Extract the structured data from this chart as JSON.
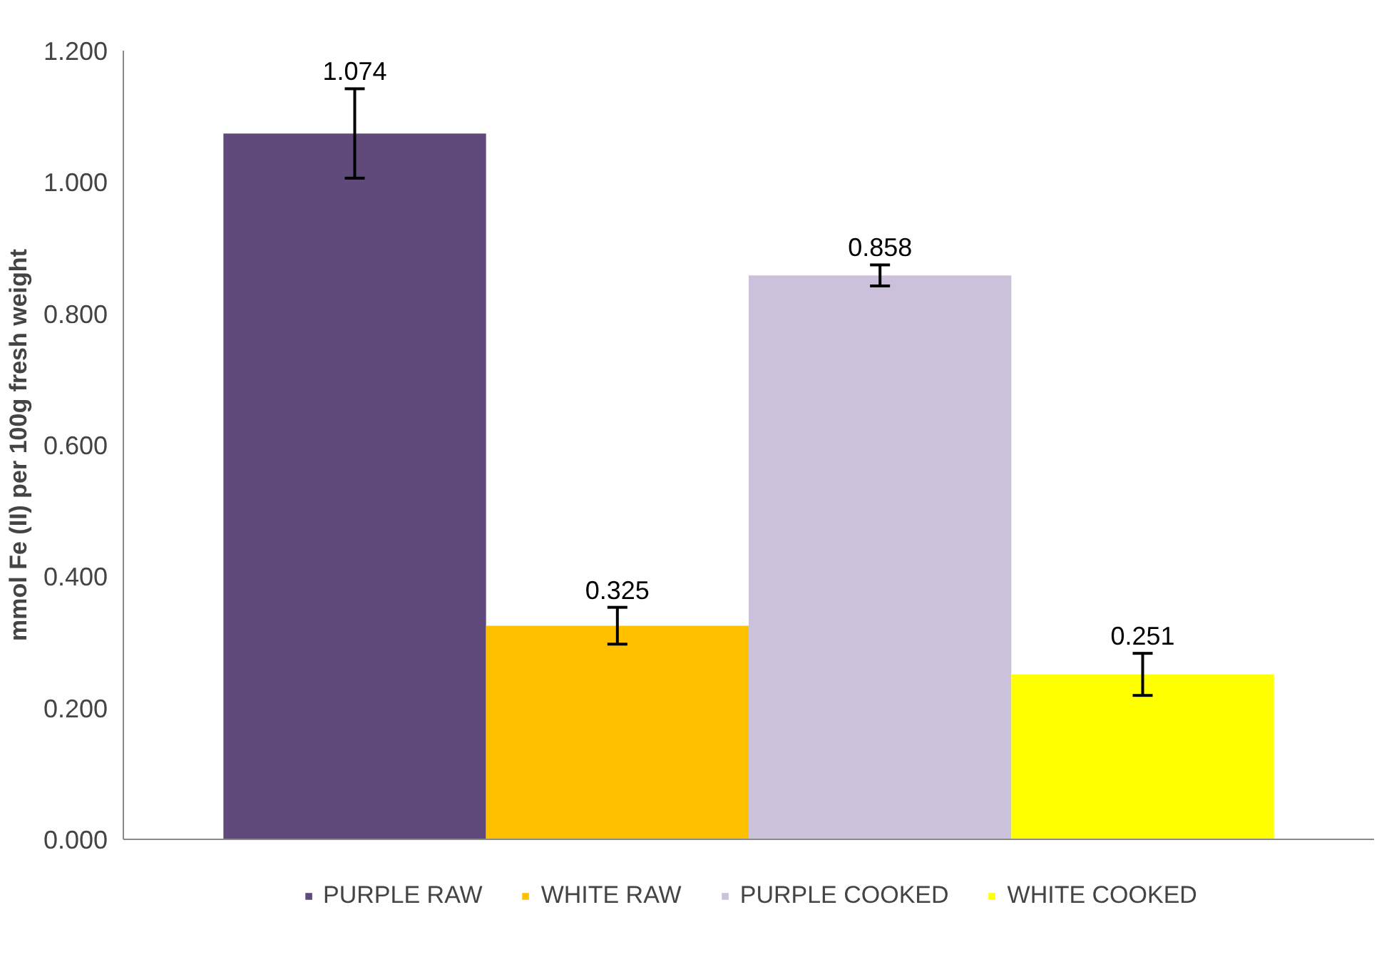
{
  "chart_data": {
    "type": "bar",
    "ylabel": "mmol Fe (II) per 100g fresh weight",
    "categories": [
      null
    ],
    "series": [
      {
        "name": "PURPLE RAW",
        "color": "#604a7b",
        "values": [
          1.074
        ],
        "errors": [
          0.068
        ]
      },
      {
        "name": "WHITE RAW",
        "color": "#ffc000",
        "values": [
          0.325
        ],
        "errors": [
          0.028
        ]
      },
      {
        "name": "PURPLE COOKED",
        "color": "#ccc1da",
        "values": [
          0.858
        ],
        "errors": [
          0.016
        ]
      },
      {
        "name": "WHITE COOKED",
        "color": "#ffff00",
        "values": [
          0.251
        ],
        "errors": [
          0.032
        ]
      }
    ],
    "ylim": [
      0,
      1.2
    ],
    "yticks": [
      {
        "value": 0,
        "label": "0.000"
      },
      {
        "value": 0.2,
        "label": "0.200"
      },
      {
        "value": 0.4,
        "label": "0.400"
      },
      {
        "value": 0.6,
        "label": "0.600"
      },
      {
        "value": 0.8,
        "label": "0.800"
      },
      {
        "value": 1.0,
        "label": "1.000"
      },
      {
        "value": 1.2,
        "label": "1.200"
      }
    ],
    "data_labels": true,
    "grid": false,
    "legend": "bottom"
  }
}
